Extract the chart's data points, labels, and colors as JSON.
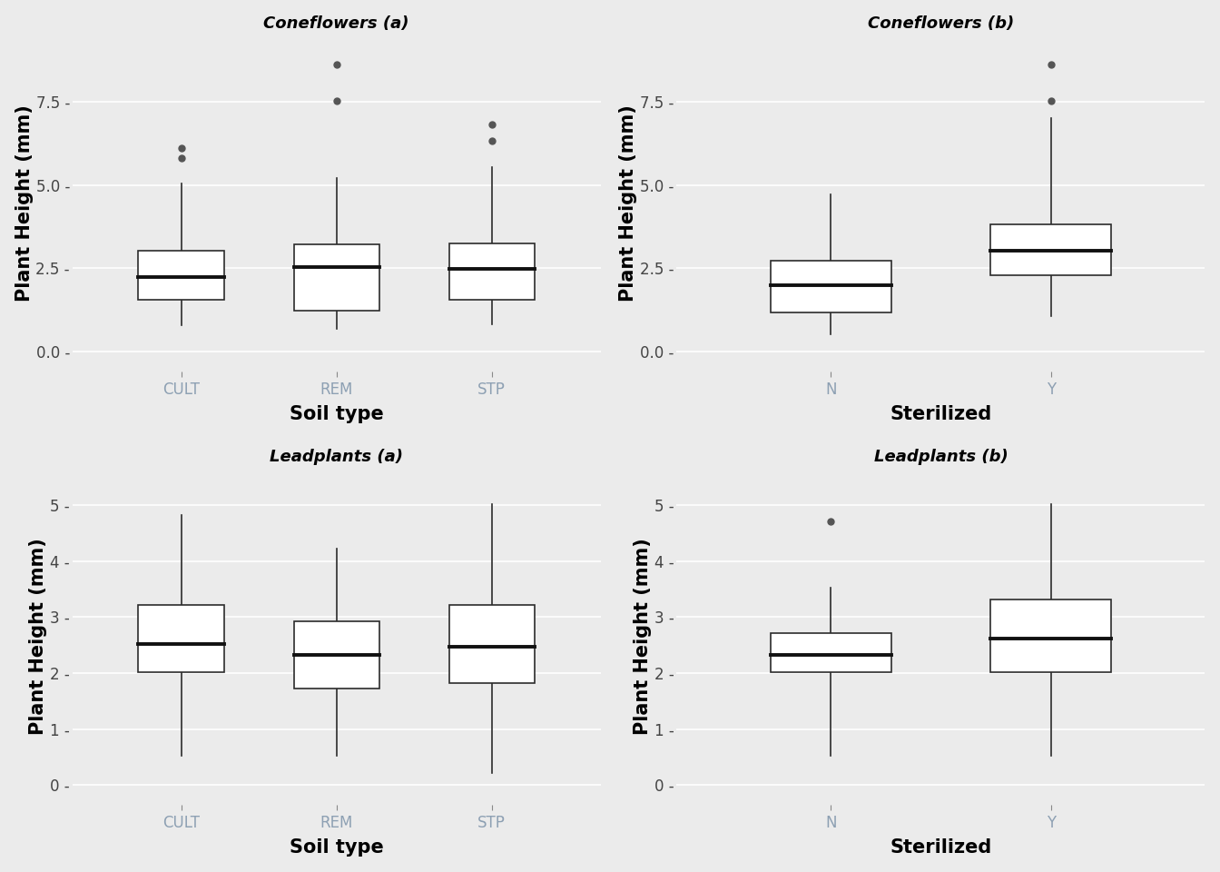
{
  "panels": [
    {
      "title": "Coneflowers (a)",
      "xlabel": "Soil type",
      "ylabel": "Plant Height (mm)",
      "ylim": [
        -0.6,
        9.5
      ],
      "yticks": [
        0.0,
        2.5,
        5.0,
        7.5
      ],
      "ytick_labels": [
        "0.0 -",
        "2.5 -",
        "5.0 -",
        "7.5 -"
      ],
      "categories": [
        "CULT",
        "REM",
        "STP"
      ],
      "boxes": [
        {
          "q1": 1.55,
          "median": 2.22,
          "q3": 3.02,
          "whisker_low": 0.78,
          "whisker_high": 5.05,
          "outliers": [
            5.82,
            6.12
          ]
        },
        {
          "q1": 1.22,
          "median": 2.52,
          "q3": 3.22,
          "whisker_low": 0.68,
          "whisker_high": 5.22,
          "outliers": [
            7.52,
            8.62
          ]
        },
        {
          "q1": 1.55,
          "median": 2.48,
          "q3": 3.25,
          "whisker_low": 0.82,
          "whisker_high": 5.55,
          "outliers": [
            6.32,
            6.82
          ]
        }
      ]
    },
    {
      "title": "Coneflowers (b)",
      "xlabel": "Sterilized",
      "ylabel": "Plant Height (mm)",
      "ylim": [
        -0.6,
        9.5
      ],
      "yticks": [
        0.0,
        2.5,
        5.0,
        7.5
      ],
      "ytick_labels": [
        "0.0 -",
        "2.5 -",
        "5.0 -",
        "7.5 -"
      ],
      "categories": [
        "N",
        "Y"
      ],
      "boxes": [
        {
          "q1": 1.18,
          "median": 2.0,
          "q3": 2.72,
          "whisker_low": 0.5,
          "whisker_high": 4.72,
          "outliers": []
        },
        {
          "q1": 2.28,
          "median": 3.02,
          "q3": 3.82,
          "whisker_low": 1.05,
          "whisker_high": 7.02,
          "outliers": [
            7.52,
            8.62
          ]
        }
      ]
    },
    {
      "title": "Leadplants (a)",
      "xlabel": "Soil type",
      "ylabel": "Plant Height (mm)",
      "ylim": [
        -0.35,
        5.65
      ],
      "yticks": [
        0,
        1,
        2,
        3,
        4,
        5
      ],
      "ytick_labels": [
        "0 -",
        "1 -",
        "2 -",
        "3 -",
        "4 -",
        "5 -"
      ],
      "categories": [
        "CULT",
        "REM",
        "STP"
      ],
      "boxes": [
        {
          "q1": 2.02,
          "median": 2.52,
          "q3": 3.22,
          "whisker_low": 0.52,
          "whisker_high": 4.82,
          "outliers": []
        },
        {
          "q1": 1.72,
          "median": 2.32,
          "q3": 2.92,
          "whisker_low": 0.52,
          "whisker_high": 4.22,
          "outliers": []
        },
        {
          "q1": 1.82,
          "median": 2.48,
          "q3": 3.22,
          "whisker_low": 0.22,
          "whisker_high": 5.02,
          "outliers": []
        }
      ]
    },
    {
      "title": "Leadplants (b)",
      "xlabel": "Sterilized",
      "ylabel": "Plant Height (mm)",
      "ylim": [
        -0.35,
        5.65
      ],
      "yticks": [
        0,
        1,
        2,
        3,
        4,
        5
      ],
      "ytick_labels": [
        "0 -",
        "1 -",
        "2 -",
        "3 -",
        "4 -",
        "5 -"
      ],
      "categories": [
        "N",
        "Y"
      ],
      "boxes": [
        {
          "q1": 2.02,
          "median": 2.32,
          "q3": 2.72,
          "whisker_low": 0.52,
          "whisker_high": 3.52,
          "outliers": [
            4.72
          ]
        },
        {
          "q1": 2.02,
          "median": 2.62,
          "q3": 3.32,
          "whisker_low": 0.52,
          "whisker_high": 5.02,
          "outliers": []
        }
      ]
    }
  ],
  "bg_color": "#ebebeb",
  "panel_bg_color": "#ebebeb",
  "grid_color": "#ffffff",
  "box_facecolor": "white",
  "box_edgecolor": "#2b2b2b",
  "median_color": "#111111",
  "whisker_color": "#2b2b2b",
  "outlier_color": "#555555",
  "xtick_color": "#8da0b3",
  "ytick_color": "#444444",
  "title_fontsize": 13,
  "label_fontsize": 15,
  "tick_fontsize": 12,
  "box_width": 0.55,
  "linewidth": 1.2,
  "median_linewidth": 2.8,
  "outlier_size": 5
}
